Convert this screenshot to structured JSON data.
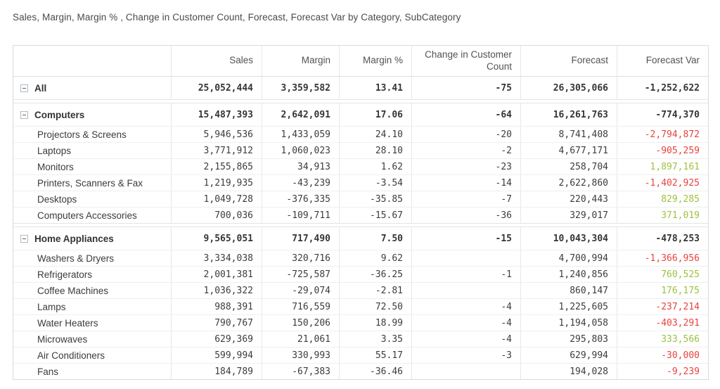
{
  "title": "Sales, Margin, Margin % , Change in Customer Count, Forecast, Forecast Var by Category, SubCategory",
  "colors": {
    "positive_value": "#9cc23c",
    "negative_value": "#e8433d",
    "text": "#3c3c3c",
    "header_text": "#525252",
    "border": "#e6e7e8"
  },
  "icons": {
    "collapse": "minus-box-icon"
  },
  "table": {
    "columns": [
      "",
      "Sales",
      "Margin",
      "Margin %",
      "Change in Customer Count",
      "Forecast",
      "Forecast Var"
    ],
    "rows": [
      {
        "type": "category",
        "group_start": false,
        "label": "All",
        "sales": "25,052,444",
        "margin": "3,359,582",
        "margin_pct": "13.41",
        "cust_change": "-75",
        "forecast": "26,305,066",
        "forecast_var": "-1,252,622",
        "var_state": "neutral"
      },
      {
        "type": "category",
        "group_start": true,
        "label": "Computers",
        "sales": "15,487,393",
        "margin": "2,642,091",
        "margin_pct": "17.06",
        "cust_change": "-64",
        "forecast": "16,261,763",
        "forecast_var": "-774,370",
        "var_state": "neutral"
      },
      {
        "type": "subcategory",
        "group_start": false,
        "label": "Projectors & Screens",
        "sales": "5,946,536",
        "margin": "1,433,059",
        "margin_pct": "24.10",
        "cust_change": "-20",
        "forecast": "8,741,408",
        "forecast_var": "-2,794,872",
        "var_state": "negative"
      },
      {
        "type": "subcategory",
        "group_start": false,
        "label": "Laptops",
        "sales": "3,771,912",
        "margin": "1,060,023",
        "margin_pct": "28.10",
        "cust_change": "-2",
        "forecast": "4,677,171",
        "forecast_var": "-905,259",
        "var_state": "negative"
      },
      {
        "type": "subcategory",
        "group_start": false,
        "label": "Monitors",
        "sales": "2,155,865",
        "margin": "34,913",
        "margin_pct": "1.62",
        "cust_change": "-23",
        "forecast": "258,704",
        "forecast_var": "1,897,161",
        "var_state": "positive"
      },
      {
        "type": "subcategory",
        "group_start": false,
        "label": "Printers, Scanners & Fax",
        "sales": "1,219,935",
        "margin": "-43,239",
        "margin_pct": "-3.54",
        "cust_change": "-14",
        "forecast": "2,622,860",
        "forecast_var": "-1,402,925",
        "var_state": "negative"
      },
      {
        "type": "subcategory",
        "group_start": false,
        "label": "Desktops",
        "sales": "1,049,728",
        "margin": "-376,335",
        "margin_pct": "-35.85",
        "cust_change": "-7",
        "forecast": "220,443",
        "forecast_var": "829,285",
        "var_state": "positive"
      },
      {
        "type": "subcategory",
        "group_start": false,
        "label": "Computers Accessories",
        "sales": "700,036",
        "margin": "-109,711",
        "margin_pct": "-15.67",
        "cust_change": "-36",
        "forecast": "329,017",
        "forecast_var": "371,019",
        "var_state": "positive"
      },
      {
        "type": "category",
        "group_start": true,
        "label": "Home Appliances",
        "sales": "9,565,051",
        "margin": "717,490",
        "margin_pct": "7.50",
        "cust_change": "-15",
        "forecast": "10,043,304",
        "forecast_var": "-478,253",
        "var_state": "neutral"
      },
      {
        "type": "subcategory",
        "group_start": false,
        "label": "Washers & Dryers",
        "sales": "3,334,038",
        "margin": "320,716",
        "margin_pct": "9.62",
        "cust_change": "",
        "forecast": "4,700,994",
        "forecast_var": "-1,366,956",
        "var_state": "negative"
      },
      {
        "type": "subcategory",
        "group_start": false,
        "label": "Refrigerators",
        "sales": "2,001,381",
        "margin": "-725,587",
        "margin_pct": "-36.25",
        "cust_change": "-1",
        "forecast": "1,240,856",
        "forecast_var": "760,525",
        "var_state": "positive"
      },
      {
        "type": "subcategory",
        "group_start": false,
        "label": "Coffee Machines",
        "sales": "1,036,322",
        "margin": "-29,074",
        "margin_pct": "-2.81",
        "cust_change": "",
        "forecast": "860,147",
        "forecast_var": "176,175",
        "var_state": "positive"
      },
      {
        "type": "subcategory",
        "group_start": false,
        "label": "Lamps",
        "sales": "988,391",
        "margin": "716,559",
        "margin_pct": "72.50",
        "cust_change": "-4",
        "forecast": "1,225,605",
        "forecast_var": "-237,214",
        "var_state": "negative"
      },
      {
        "type": "subcategory",
        "group_start": false,
        "label": "Water Heaters",
        "sales": "790,767",
        "margin": "150,206",
        "margin_pct": "18.99",
        "cust_change": "-4",
        "forecast": "1,194,058",
        "forecast_var": "-403,291",
        "var_state": "negative"
      },
      {
        "type": "subcategory",
        "group_start": false,
        "label": "Microwaves",
        "sales": "629,369",
        "margin": "21,061",
        "margin_pct": "3.35",
        "cust_change": "-4",
        "forecast": "295,803",
        "forecast_var": "333,566",
        "var_state": "positive"
      },
      {
        "type": "subcategory",
        "group_start": false,
        "label": "Air Conditioners",
        "sales": "599,994",
        "margin": "330,993",
        "margin_pct": "55.17",
        "cust_change": "-3",
        "forecast": "629,994",
        "forecast_var": "-30,000",
        "var_state": "negative"
      },
      {
        "type": "subcategory",
        "group_start": false,
        "label": "Fans",
        "sales": "184,789",
        "margin": "-67,383",
        "margin_pct": "-36.46",
        "cust_change": "",
        "forecast": "194,028",
        "forecast_var": "-9,239",
        "var_state": "negative"
      }
    ]
  }
}
